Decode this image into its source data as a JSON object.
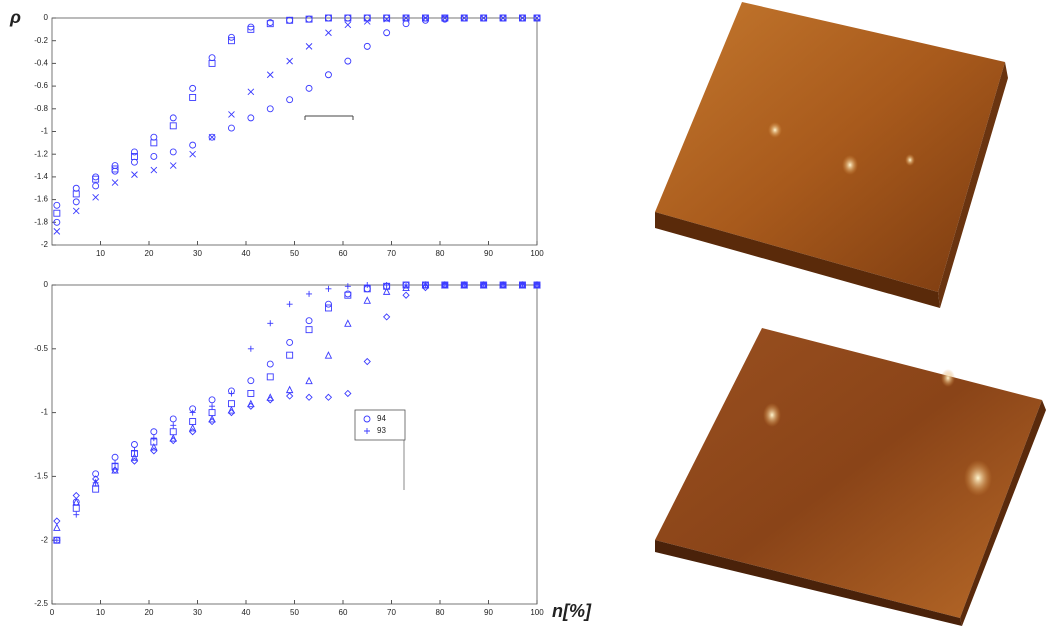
{
  "chart_data": [
    {
      "type": "scatter",
      "y_label": "ρ",
      "x": [
        1,
        5,
        9,
        13,
        17,
        21,
        25,
        29,
        33,
        37,
        41,
        45,
        49,
        53,
        57,
        61,
        65,
        69,
        73,
        77,
        81,
        85,
        89,
        93,
        97,
        100
      ],
      "xlim": [
        0,
        100
      ],
      "xticks": [
        10,
        20,
        30,
        40,
        50,
        60,
        70,
        80,
        90,
        100
      ],
      "ylim": [
        -2,
        0
      ],
      "yticks": [
        0,
        -0.2,
        -0.4,
        -0.6,
        -0.8,
        -1,
        -1.2,
        -1.4,
        -1.6,
        -1.8,
        -2
      ],
      "series": [
        {
          "marker": "square",
          "color": "#3a3aff",
          "values": [
            -1.72,
            -1.55,
            -1.42,
            -1.33,
            -1.22,
            -1.1,
            -0.95,
            -0.7,
            -0.4,
            -0.2,
            -0.1,
            -0.05,
            -0.02,
            -0.01,
            0,
            0,
            0,
            0,
            0,
            0,
            0,
            0,
            0,
            0,
            0,
            0
          ]
        },
        {
          "marker": "circle",
          "color": "#3a3aff",
          "values": [
            -1.65,
            -1.5,
            -1.4,
            -1.3,
            -1.18,
            -1.05,
            -0.88,
            -0.62,
            -0.35,
            -0.17,
            -0.08,
            -0.04,
            -0.02,
            -0.01,
            0,
            0,
            0,
            0,
            0,
            0,
            0,
            0,
            0,
            0,
            0,
            0
          ]
        },
        {
          "marker": "circle",
          "color": "#3a3aff",
          "values": [
            -1.8,
            -1.62,
            -1.48,
            -1.35,
            -1.27,
            -1.22,
            -1.18,
            -1.12,
            -1.05,
            -0.97,
            -0.88,
            -0.8,
            -0.72,
            -0.62,
            -0.5,
            -0.38,
            -0.25,
            -0.13,
            -0.05,
            -0.02,
            -0.01,
            0,
            0,
            0,
            0,
            0
          ]
        },
        {
          "marker": "x",
          "color": "#3a3aff",
          "values": [
            -1.88,
            -1.7,
            -1.58,
            -1.45,
            -1.38,
            -1.34,
            -1.3,
            -1.2,
            -1.05,
            -0.85,
            -0.65,
            -0.5,
            -0.38,
            -0.25,
            -0.13,
            -0.06,
            -0.03,
            -0.01,
            0,
            0,
            0,
            0,
            0,
            0,
            0,
            0
          ]
        }
      ]
    },
    {
      "type": "scatter",
      "x_label": "n[%]",
      "x": [
        1,
        5,
        9,
        13,
        17,
        21,
        25,
        29,
        33,
        37,
        41,
        45,
        49,
        53,
        57,
        61,
        65,
        69,
        73,
        77,
        81,
        85,
        89,
        93,
        97,
        100
      ],
      "xlim": [
        0,
        100
      ],
      "xticks": [
        0,
        10,
        20,
        30,
        40,
        50,
        60,
        70,
        80,
        90,
        100
      ],
      "ylim": [
        -2.5,
        0
      ],
      "yticks": [
        0,
        -0.5,
        -1,
        -1.5,
        -2,
        -2.5
      ],
      "series": [
        {
          "name": "94",
          "marker": "circle",
          "color": "#3a3aff",
          "values": [
            -2,
            -1.7,
            -1.48,
            -1.35,
            -1.25,
            -1.15,
            -1.05,
            -0.97,
            -0.9,
            -0.83,
            -0.75,
            -0.62,
            -0.45,
            -0.28,
            -0.15,
            -0.07,
            -0.03,
            -0.01,
            0,
            0,
            0,
            0,
            0,
            0,
            0,
            0
          ]
        },
        {
          "name": "93",
          "marker": "plus",
          "color": "#3a3aff",
          "values": [
            -2,
            -1.8,
            -1.55,
            -1.4,
            -1.3,
            -1.2,
            -1.1,
            -1.0,
            -0.95,
            -0.85,
            -0.5,
            -0.3,
            -0.15,
            -0.07,
            -0.03,
            -0.01,
            0,
            0,
            0,
            0,
            0,
            0,
            0,
            0,
            0,
            0
          ]
        },
        {
          "marker": "square",
          "color": "#3a3aff",
          "values": [
            -2,
            -1.75,
            -1.6,
            -1.42,
            -1.32,
            -1.23,
            -1.15,
            -1.07,
            -1.0,
            -0.93,
            -0.85,
            -0.72,
            -0.55,
            -0.35,
            -0.18,
            -0.08,
            -0.03,
            -0.01,
            0,
            0,
            0,
            0,
            0,
            0,
            0,
            0
          ]
        },
        {
          "marker": "triangle",
          "color": "#3a3aff",
          "values": [
            -1.9,
            -1.7,
            -1.55,
            -1.45,
            -1.35,
            -1.27,
            -1.2,
            -1.12,
            -1.05,
            -0.98,
            -0.93,
            -0.88,
            -0.82,
            -0.75,
            -0.55,
            -0.3,
            -0.12,
            -0.05,
            -0.02,
            0,
            0,
            0,
            0,
            0,
            0,
            0
          ]
        },
        {
          "marker": "diamond",
          "color": "#3a3aff",
          "values": [
            -1.85,
            -1.65,
            -1.52,
            -1.45,
            -1.38,
            -1.3,
            -1.22,
            -1.15,
            -1.07,
            -1.0,
            -0.95,
            -0.9,
            -0.87,
            -0.88,
            -0.88,
            -0.85,
            -0.6,
            -0.25,
            -0.08,
            -0.02,
            0,
            0,
            0,
            0,
            0,
            0
          ]
        }
      ]
    }
  ]
}
